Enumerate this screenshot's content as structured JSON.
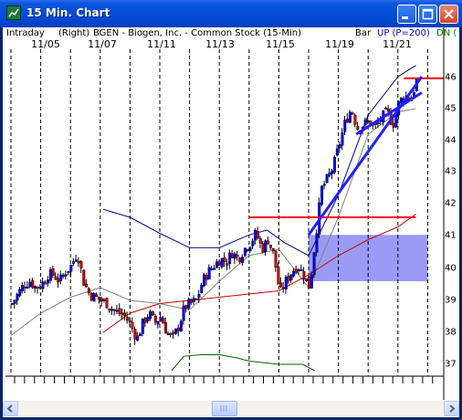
{
  "window": {
    "title": "15 Min. Chart",
    "buttons": {
      "minimize": "minimize-icon",
      "maximize": "maximize-icon",
      "close": "close-icon"
    }
  },
  "info_bar": {
    "interval": "Intraday",
    "axis_side": "(Right)",
    "symbol_desc": "BGEN - Biogen, Inc. - Common Stock (15-Min)",
    "bar_label": "Bar",
    "up_label": "UP (P=200)",
    "dn_label": "DN (",
    "colors": {
      "up": "#0000CC",
      "dn": "#008000"
    }
  },
  "date_labels": [
    "11/05",
    "11/07",
    "11/11",
    "11/13",
    "11/15",
    "11/19",
    "11/21"
  ],
  "price_labels": [
    "46",
    "45",
    "44",
    "43",
    "42",
    "41",
    "40",
    "39",
    "38",
    "37"
  ],
  "chart_data": {
    "type": "candlestick",
    "symbol": "BGEN",
    "x_labels": [
      "11/05",
      "11/07",
      "11/11",
      "11/13",
      "11/15",
      "11/19",
      "11/21"
    ],
    "ylim": [
      36.7,
      46.3
    ],
    "yticks": [
      37,
      38,
      39,
      40,
      41,
      42,
      43,
      44,
      45,
      46
    ],
    "grid": "vertical dashed per day",
    "price_path": [
      [
        0,
        38.9
      ],
      [
        0.2,
        39.2
      ],
      [
        0.4,
        39.5
      ],
      [
        0.6,
        39.6
      ],
      [
        0.8,
        39.4
      ],
      [
        1.0,
        39.5
      ],
      [
        1.2,
        39.8
      ],
      [
        1.4,
        39.8
      ],
      [
        1.6,
        39.6
      ],
      [
        1.8,
        39.9
      ],
      [
        2.0,
        40.1
      ],
      [
        2.2,
        40.5
      ],
      [
        2.4,
        39.6
      ],
      [
        2.6,
        39.2
      ],
      [
        2.8,
        39.1
      ],
      [
        3.0,
        39.0
      ],
      [
        3.2,
        38.9
      ],
      [
        3.4,
        38.7
      ],
      [
        3.6,
        38.6
      ],
      [
        3.8,
        38.5
      ],
      [
        4.0,
        38.2
      ],
      [
        4.2,
        37.8
      ],
      [
        4.4,
        38.3
      ],
      [
        4.6,
        38.6
      ],
      [
        4.8,
        38.3
      ],
      [
        5.0,
        38.5
      ],
      [
        5.2,
        38.0
      ],
      [
        5.4,
        37.8
      ],
      [
        5.6,
        38.2
      ],
      [
        5.8,
        38.8
      ],
      [
        6.0,
        38.9
      ],
      [
        6.2,
        39.0
      ],
      [
        6.4,
        39.6
      ],
      [
        6.6,
        39.9
      ],
      [
        6.8,
        40.1
      ],
      [
        7.0,
        40.3
      ],
      [
        7.2,
        40.2
      ],
      [
        7.4,
        40.5
      ],
      [
        7.6,
        40.3
      ],
      [
        7.8,
        40.6
      ],
      [
        8.0,
        40.8
      ],
      [
        8.2,
        41.1
      ],
      [
        8.4,
        40.6
      ],
      [
        8.6,
        40.9
      ],
      [
        8.8,
        40.4
      ],
      [
        9.0,
        39.2
      ],
      [
        9.2,
        39.6
      ],
      [
        9.4,
        39.9
      ],
      [
        9.6,
        40.1
      ],
      [
        9.8,
        39.8
      ],
      [
        10.0,
        39.4
      ],
      [
        10.2,
        41.0
      ],
      [
        10.4,
        42.5
      ],
      [
        10.6,
        42.8
      ],
      [
        10.8,
        43.2
      ],
      [
        11.0,
        43.9
      ],
      [
        11.2,
        44.6
      ],
      [
        11.4,
        45.0
      ],
      [
        11.6,
        44.4
      ],
      [
        11.8,
        44.5
      ],
      [
        12.0,
        44.6
      ],
      [
        12.2,
        44.4
      ],
      [
        12.4,
        44.7
      ],
      [
        12.6,
        44.9
      ],
      [
        12.8,
        44.5
      ],
      [
        13.0,
        45.2
      ],
      [
        13.2,
        45.4
      ],
      [
        13.4,
        45.3
      ],
      [
        13.6,
        45.9
      ]
    ],
    "moving_average": [
      [
        0,
        37.9
      ],
      [
        1,
        38.6
      ],
      [
        2,
        39.1
      ],
      [
        3,
        39.4
      ],
      [
        4,
        39.0
      ],
      [
        5,
        38.9
      ],
      [
        6,
        38.7
      ],
      [
        7,
        39.6
      ],
      [
        8,
        40.4
      ],
      [
        9,
        40.6
      ],
      [
        10,
        39.4
      ],
      [
        11,
        41.6
      ],
      [
        12,
        44.2
      ],
      [
        13,
        44.9
      ],
      [
        13.6,
        45.0
      ]
    ],
    "long_average": [
      [
        3.1,
        38.0
      ],
      [
        4,
        38.6
      ],
      [
        5,
        38.9
      ],
      [
        6,
        39.0
      ],
      [
        7,
        39.1
      ],
      [
        8,
        39.2
      ],
      [
        9,
        39.3
      ],
      [
        10,
        39.8
      ],
      [
        11,
        40.4
      ],
      [
        12,
        40.9
      ],
      [
        13,
        41.3
      ],
      [
        13.6,
        41.7
      ]
    ],
    "upper_band": [
      [
        3.1,
        41.85
      ],
      [
        4,
        41.6
      ],
      [
        5,
        41.1
      ],
      [
        6,
        40.65
      ],
      [
        7,
        40.65
      ],
      [
        8,
        41.05
      ],
      [
        8.6,
        41.2
      ],
      [
        9.2,
        40.8
      ],
      [
        10.0,
        40.4
      ],
      [
        11,
        42.3
      ],
      [
        12,
        44.8
      ],
      [
        13,
        46.0
      ],
      [
        13.6,
        46.35
      ]
    ],
    "lower_band": [
      [
        5.4,
        36.8
      ],
      [
        5.8,
        37.25
      ],
      [
        6.4,
        37.3
      ],
      [
        7.0,
        37.3
      ],
      [
        7.6,
        37.2
      ],
      [
        8.0,
        37.1
      ],
      [
        9.0,
        37.0
      ],
      [
        9.8,
        37.0
      ],
      [
        10.0,
        36.9
      ],
      [
        10.2,
        36.8
      ]
    ],
    "resistance_level": 41.6,
    "resistance_range_x": [
      8.0,
      13.6
    ],
    "close_level": 45.95,
    "close_range_x": [
      13.2,
      13.8
    ],
    "trendlines": [
      {
        "from": [
          10.0,
          41.05
        ],
        "to": [
          13.8,
          46.0
        ]
      },
      {
        "from": [
          11.6,
          44.2
        ],
        "to": [
          13.8,
          45.5
        ]
      }
    ],
    "highlight_zone": {
      "x_from": 10.0,
      "x_to": 14.0,
      "y_from": 39.6,
      "y_to": 41.05
    }
  }
}
